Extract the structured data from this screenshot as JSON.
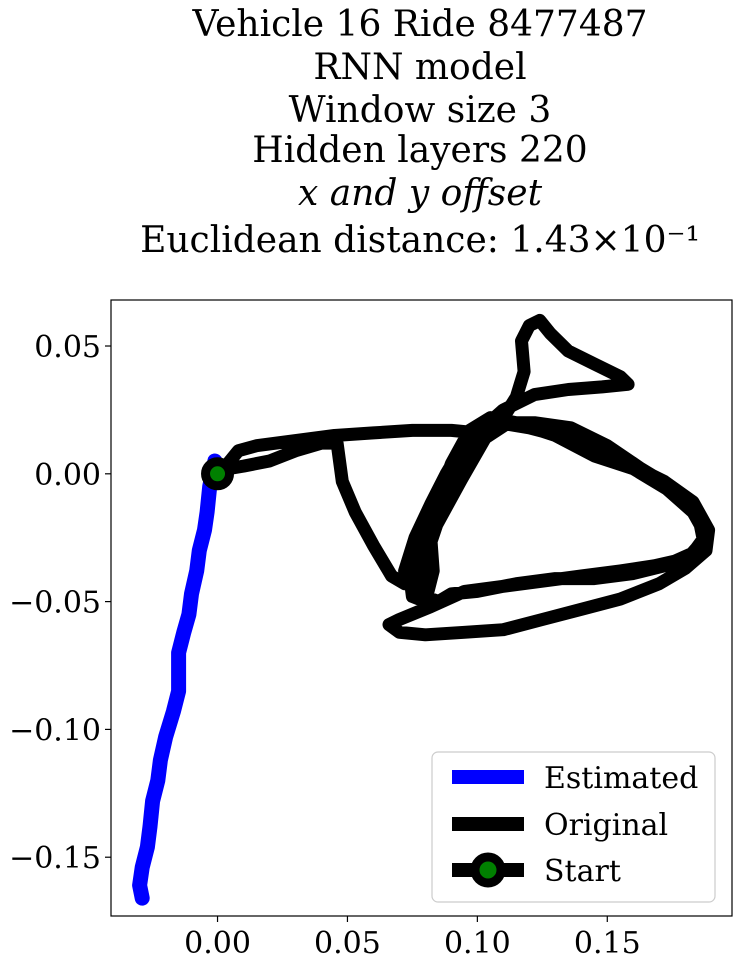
{
  "chart_data": {
    "type": "line",
    "title_lines": [
      "Vehicle 16 Ride 8477487",
      "RNN model",
      "Window size 3",
      "Hidden layers 220",
      "x and y offset",
      "Euclidean distance: 1.43×10⁻¹"
    ],
    "xlabel": "",
    "ylabel": "",
    "xlim": [
      -0.041,
      0.198
    ],
    "ylim": [
      -0.173,
      0.068
    ],
    "x_ticks": [
      0.0,
      0.05,
      0.1,
      0.15
    ],
    "x_tick_labels": [
      "0.00",
      "0.05",
      "0.10",
      "0.15"
    ],
    "y_ticks": [
      0.05,
      0.0,
      -0.05,
      -0.1,
      -0.15
    ],
    "y_tick_labels": [
      "0.05",
      "0.00",
      "−0.05",
      "−0.10",
      "−0.15"
    ],
    "grid": false,
    "legend_position": "bottom-right",
    "series": [
      {
        "name": "Estimated",
        "color": "#0000ff",
        "points": [
          [
            0.0,
            0.0
          ],
          [
            -0.001,
            0.005
          ],
          [
            -0.003,
            -0.005
          ],
          [
            -0.004,
            -0.015
          ],
          [
            -0.005,
            -0.022
          ],
          [
            -0.007,
            -0.03
          ],
          [
            -0.008,
            -0.038
          ],
          [
            -0.01,
            -0.047
          ],
          [
            -0.011,
            -0.055
          ],
          [
            -0.013,
            -0.062
          ],
          [
            -0.015,
            -0.07
          ],
          [
            -0.015,
            -0.078
          ],
          [
            -0.015,
            -0.085
          ],
          [
            -0.017,
            -0.093
          ],
          [
            -0.02,
            -0.103
          ],
          [
            -0.022,
            -0.112
          ],
          [
            -0.023,
            -0.12
          ],
          [
            -0.025,
            -0.128
          ],
          [
            -0.026,
            -0.138
          ],
          [
            -0.027,
            -0.146
          ],
          [
            -0.029,
            -0.154
          ],
          [
            -0.03,
            -0.161
          ],
          [
            -0.029,
            -0.166
          ]
        ]
      },
      {
        "name": "Original",
        "color": "#000000",
        "points": [
          [
            0.0,
            0.0
          ],
          [
            0.004,
            0.004
          ],
          [
            0.008,
            0.009
          ],
          [
            0.015,
            0.011
          ],
          [
            0.03,
            0.013
          ],
          [
            0.045,
            0.015
          ],
          [
            0.06,
            0.016
          ],
          [
            0.075,
            0.017
          ],
          [
            0.09,
            0.017
          ],
          [
            0.1,
            0.016
          ],
          [
            0.11,
            0.022
          ],
          [
            0.115,
            0.03
          ],
          [
            0.118,
            0.04
          ],
          [
            0.117,
            0.052
          ],
          [
            0.12,
            0.058
          ],
          [
            0.124,
            0.06
          ],
          [
            0.128,
            0.055
          ],
          [
            0.135,
            0.048
          ],
          [
            0.145,
            0.043
          ],
          [
            0.155,
            0.038
          ],
          [
            0.158,
            0.035
          ],
          [
            0.148,
            0.034
          ],
          [
            0.135,
            0.033
          ],
          [
            0.122,
            0.031
          ],
          [
            0.11,
            0.025
          ],
          [
            0.1,
            0.016
          ],
          [
            0.093,
            0.006
          ],
          [
            0.086,
            -0.006
          ],
          [
            0.081,
            -0.018
          ],
          [
            0.077,
            -0.03
          ],
          [
            0.074,
            -0.04
          ],
          [
            0.075,
            -0.048
          ],
          [
            0.08,
            -0.05
          ],
          [
            0.083,
            -0.038
          ],
          [
            0.082,
            -0.024
          ],
          [
            0.085,
            -0.01
          ],
          [
            0.09,
            0.004
          ],
          [
            0.097,
            0.017
          ],
          [
            0.105,
            0.022
          ],
          [
            0.115,
            0.02
          ],
          [
            0.13,
            0.015
          ],
          [
            0.145,
            0.007
          ],
          [
            0.16,
            0.002
          ],
          [
            0.173,
            -0.006
          ],
          [
            0.183,
            -0.015
          ],
          [
            0.188,
            -0.024
          ],
          [
            0.183,
            -0.031
          ],
          [
            0.172,
            -0.036
          ],
          [
            0.16,
            -0.039
          ],
          [
            0.145,
            -0.041
          ],
          [
            0.13,
            -0.041
          ],
          [
            0.115,
            -0.043
          ],
          [
            0.1,
            -0.046
          ],
          [
            0.09,
            -0.047
          ],
          [
            0.085,
            -0.05
          ],
          [
            0.08,
            -0.048
          ],
          [
            0.078,
            -0.04
          ],
          [
            0.08,
            -0.028
          ],
          [
            0.087,
            -0.015
          ],
          [
            0.094,
            -0.002
          ],
          [
            0.103,
            0.014
          ],
          [
            0.112,
            0.02
          ],
          [
            0.122,
            0.02
          ],
          [
            0.136,
            0.018
          ],
          [
            0.15,
            0.011
          ],
          [
            0.163,
            0.002
          ],
          [
            0.176,
            -0.006
          ],
          [
            0.185,
            -0.016
          ],
          [
            0.187,
            -0.026
          ],
          [
            0.181,
            -0.033
          ],
          [
            0.168,
            -0.036
          ],
          [
            0.155,
            -0.038
          ],
          [
            0.14,
            -0.04
          ],
          [
            0.125,
            -0.042
          ],
          [
            0.11,
            -0.044
          ],
          [
            0.095,
            -0.046
          ],
          [
            0.082,
            -0.052
          ],
          [
            0.07,
            -0.057
          ],
          [
            0.066,
            -0.059
          ],
          [
            0.07,
            -0.062
          ],
          [
            0.08,
            -0.063
          ],
          [
            0.095,
            -0.062
          ],
          [
            0.11,
            -0.061
          ],
          [
            0.125,
            -0.057
          ],
          [
            0.14,
            -0.053
          ],
          [
            0.155,
            -0.049
          ],
          [
            0.17,
            -0.043
          ],
          [
            0.18,
            -0.037
          ],
          [
            0.188,
            -0.03
          ],
          [
            0.189,
            -0.022
          ],
          [
            0.183,
            -0.011
          ],
          [
            0.172,
            -0.003
          ],
          [
            0.16,
            0.003
          ],
          [
            0.148,
            0.008
          ],
          [
            0.135,
            0.014
          ],
          [
            0.12,
            0.018
          ],
          [
            0.108,
            0.02
          ],
          [
            0.1,
            0.017
          ],
          [
            0.095,
            0.009
          ],
          [
            0.09,
            -0.004
          ],
          [
            0.085,
            -0.018
          ],
          [
            0.081,
            -0.03
          ],
          [
            0.078,
            -0.041
          ],
          [
            0.072,
            -0.038
          ],
          [
            0.076,
            -0.025
          ],
          [
            0.082,
            -0.012
          ],
          [
            0.088,
            0.0
          ],
          [
            0.095,
            0.012
          ],
          [
            0.103,
            0.019
          ],
          [
            0.11,
            0.022
          ],
          [
            0.102,
            0.016
          ],
          [
            0.096,
            0.006
          ],
          [
            0.089,
            -0.008
          ],
          [
            0.082,
            -0.022
          ],
          [
            0.076,
            -0.034
          ],
          [
            0.072,
            -0.043
          ],
          [
            0.067,
            -0.04
          ],
          [
            0.06,
            -0.028
          ],
          [
            0.053,
            -0.015
          ],
          [
            0.048,
            -0.003
          ],
          [
            0.046,
            0.012
          ],
          [
            0.04,
            0.012
          ],
          [
            0.03,
            0.009
          ],
          [
            0.02,
            0.005
          ],
          [
            0.01,
            0.003
          ],
          [
            0.004,
            0.002
          ],
          [
            0.0,
            0.0
          ]
        ]
      }
    ],
    "start_point": {
      "name": "Start",
      "x": 0.0,
      "y": 0.0,
      "marker_color": "#008000",
      "edge_color": "#000000"
    },
    "legend": [
      "Estimated",
      "Original",
      "Start"
    ]
  }
}
